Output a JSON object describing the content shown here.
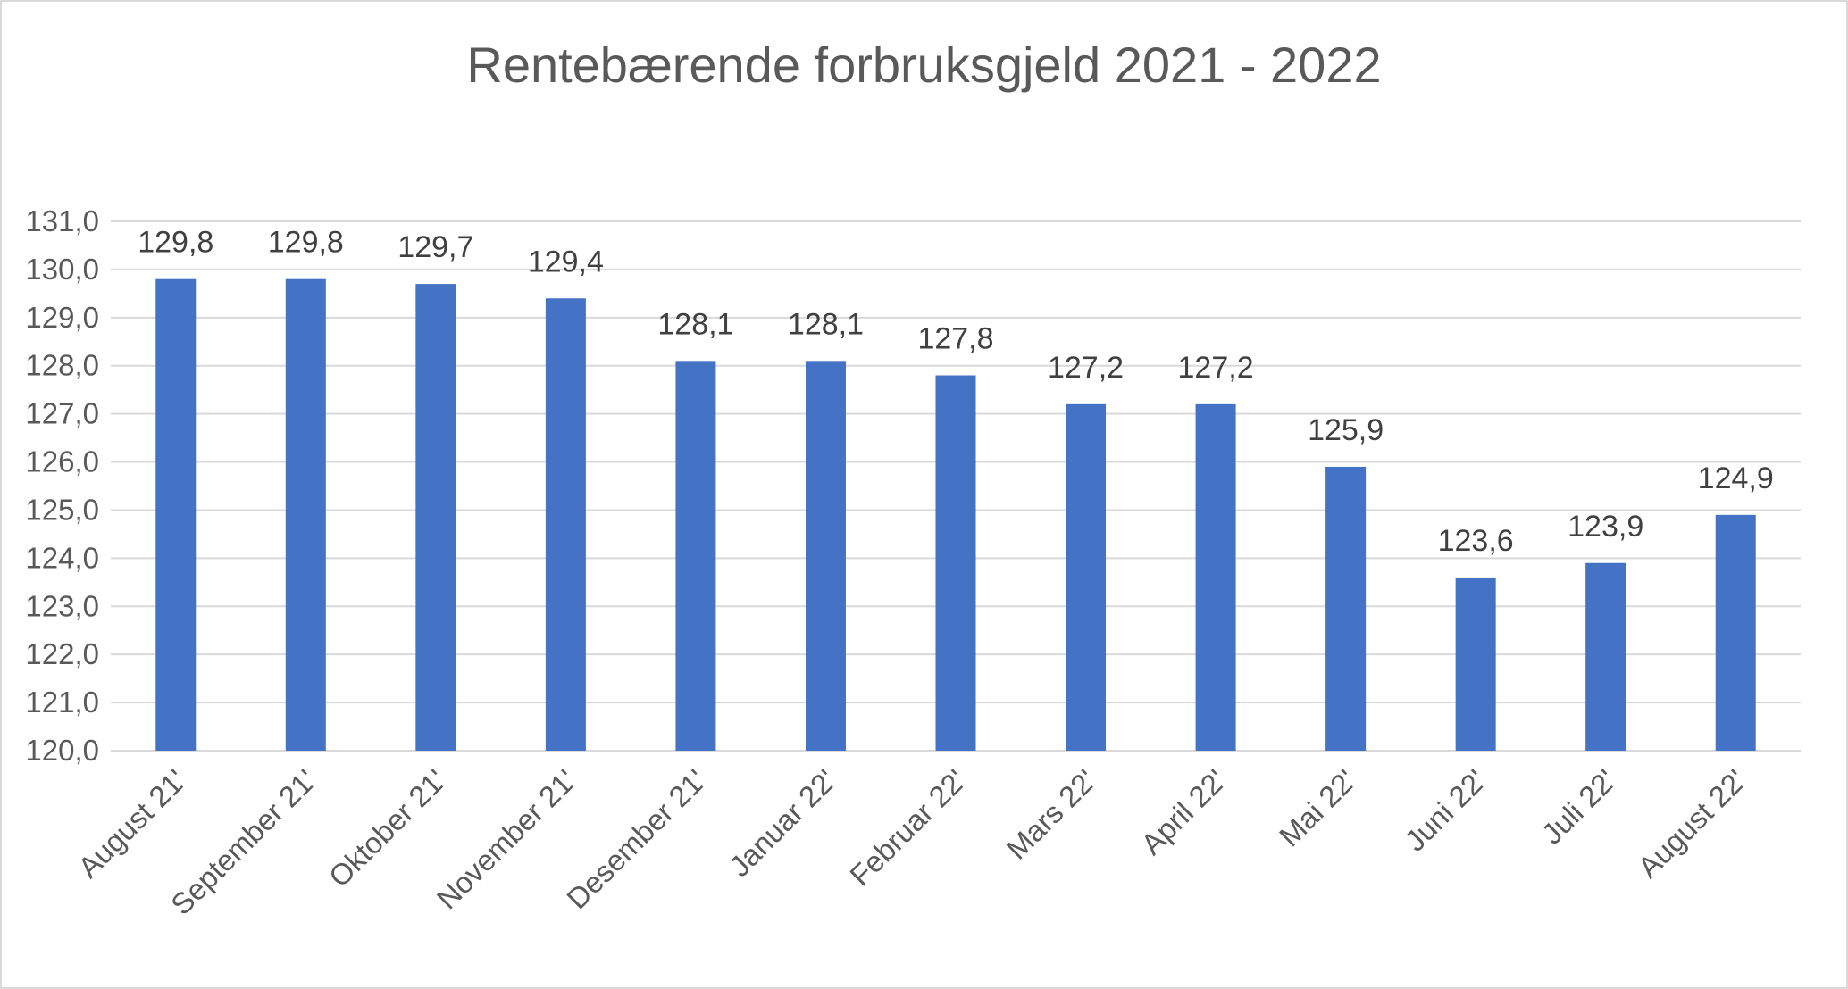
{
  "chart_data": {
    "type": "bar",
    "title": "Rentebærende forbruksgjeld 2021 - 2022",
    "categories": [
      "August 21'",
      "September 21'",
      "Oktober 21'",
      "November 21'",
      "Desember 21'",
      "Januar 22'",
      "Februar 22'",
      "Mars 22'",
      "April 22'",
      "Mai 22'",
      "Juni 22'",
      "Juli 22'",
      "August 22'"
    ],
    "values": [
      129.8,
      129.8,
      129.7,
      129.4,
      128.1,
      128.1,
      127.8,
      127.2,
      127.2,
      125.9,
      123.6,
      123.9,
      124.9
    ],
    "data_labels": [
      "129,8",
      "129,8",
      "129,7",
      "129,4",
      "128,1",
      "128,1",
      "127,8",
      "127,2",
      "127,2",
      "125,9",
      "123,6",
      "123,9",
      "124,9"
    ],
    "yticks": [
      "120,0",
      "121,0",
      "122,0",
      "123,0",
      "124,0",
      "125,0",
      "126,0",
      "127,0",
      "128,0",
      "129,0",
      "130,0",
      "131,0"
    ],
    "ylim": [
      120,
      131
    ],
    "xlabel": "",
    "ylabel": "",
    "grid": true,
    "legend": "none",
    "bar_color": "#4472C4",
    "grid_color": "#d9d9d9"
  }
}
